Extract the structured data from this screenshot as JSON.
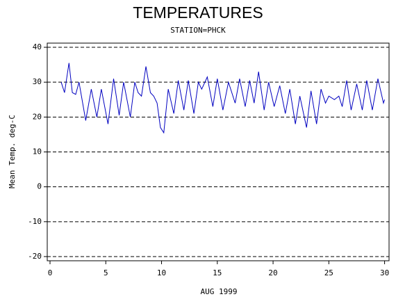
{
  "chart_data": {
    "type": "line",
    "title": "TEMPERATURES",
    "subtitle": "STATION=PHCK",
    "x_label": "AUG 1999",
    "y_label": "Mean Temp. deg-C",
    "x": [
      1.0,
      1.3,
      1.7,
      2.0,
      2.3,
      2.6,
      3.2,
      3.7,
      4.2,
      4.6,
      5.2,
      5.7,
      6.2,
      6.6,
      7.2,
      7.6,
      7.9,
      8.2,
      8.6,
      9.0,
      9.3,
      9.6,
      9.9,
      10.2,
      10.6,
      11.1,
      11.5,
      12.0,
      12.4,
      12.9,
      13.3,
      13.6,
      14.1,
      14.6,
      15.0,
      15.5,
      16.0,
      16.6,
      17.0,
      17.5,
      17.9,
      18.3,
      18.7,
      19.2,
      19.6,
      20.1,
      20.6,
      21.1,
      21.5,
      22.0,
      22.4,
      23.0,
      23.4,
      23.9,
      24.3,
      24.7,
      25.0,
      25.5,
      25.9,
      26.2,
      26.6,
      27.0,
      27.5,
      28.0,
      28.4,
      28.9,
      29.4,
      29.9,
      30.0
    ],
    "series": [
      {
        "name": "Mean Temp.",
        "color": "#0000c0",
        "values": [
          30,
          27,
          35.5,
          27,
          26.5,
          30,
          19,
          28,
          20,
          28,
          18,
          31,
          20.5,
          30,
          20,
          30,
          27,
          26,
          34.5,
          27,
          26,
          24,
          17,
          15.5,
          28,
          21,
          30.5,
          22,
          30.5,
          21,
          30,
          28,
          31.5,
          23,
          31,
          22,
          30,
          24,
          31,
          23,
          30.5,
          24,
          33,
          22,
          30,
          23,
          29,
          21,
          28,
          18,
          26,
          17,
          27.5,
          18,
          28,
          24,
          26,
          25,
          26,
          23,
          30.5,
          22,
          29.5,
          22,
          30.5,
          22,
          31,
          24,
          25
        ]
      }
    ],
    "xlim": [
      -0.25,
      30.4
    ],
    "ylim": [
      -21.2,
      41.2
    ],
    "xticks": [
      0,
      5,
      10,
      15,
      20,
      25,
      30
    ],
    "yticks": [
      -20,
      -10,
      0,
      10,
      20,
      30,
      40
    ],
    "grid": true
  }
}
